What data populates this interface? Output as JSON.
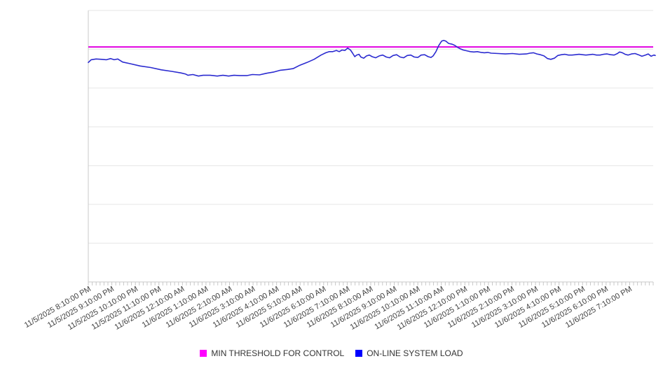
{
  "chart_data": {
    "type": "line",
    "title": "",
    "xlabel": "",
    "ylabel": "",
    "legend_position": "bottom",
    "grid": "horizontal",
    "y_axis": {
      "labels_visible": false,
      "units": "unlabeled (gridline units, 0 = bottom axis, 7 = top border)",
      "ylim": [
        0,
        7
      ]
    },
    "x_axis": {
      "tick_labels": [
        "11/5/2025 8:10:00 PM",
        "11/5/2025 9:10:00 PM",
        "11/5/2025 10:10:00 PM",
        "11/5/2025 11:10:00 PM",
        "11/6/2025 12:10:00 AM",
        "11/6/2025 1:10:00 AM",
        "11/6/2025 2:10:00 AM",
        "11/6/2025 3:10:00 AM",
        "11/6/2025 4:10:00 AM",
        "11/6/2025 5:10:00 AM",
        "11/6/2025 6:10:00 AM",
        "11/6/2025 7:10:00 AM",
        "11/6/2025 8:10:00 AM",
        "11/6/2025 9:10:00 AM",
        "11/6/2025 10:10:00 AM",
        "11/6/2025 11:10:00 AM",
        "11/6/2025 12:10:00 PM",
        "11/6/2025 1:10:00 PM",
        "11/6/2025 2:10:00 PM",
        "11/6/2025 3:10:00 PM",
        "11/6/2025 4:10:00 PM",
        "11/6/2025 5:10:00 PM",
        "11/6/2025 6:10:00 PM",
        "11/6/2025 7:10:00 PM"
      ],
      "minor_tick_interval_minutes": 10,
      "label_rotation_deg": -30
    },
    "series": [
      {
        "name": "MIN THRESHOLD FOR CONTROL",
        "kind": "threshold",
        "color": "#e100e1",
        "legend_color": "#ff00ff",
        "value": 6.06
      },
      {
        "name": "ON-LINE SYSTEM LOAD",
        "kind": "line",
        "color": "#2b2bd0",
        "legend_color": "#0000ff",
        "points": [
          [
            0,
            5.66
          ],
          [
            0.12,
            5.73
          ],
          [
            0.33,
            5.75
          ],
          [
            0.57,
            5.74
          ],
          [
            0.77,
            5.73
          ],
          [
            0.95,
            5.76
          ],
          [
            1.1,
            5.73
          ],
          [
            1.25,
            5.75
          ],
          [
            1.46,
            5.67
          ],
          [
            1.76,
            5.63
          ],
          [
            2.2,
            5.57
          ],
          [
            2.65,
            5.53
          ],
          [
            3.1,
            5.47
          ],
          [
            3.54,
            5.43
          ],
          [
            3.93,
            5.39
          ],
          [
            4.14,
            5.36
          ],
          [
            4.23,
            5.33
          ],
          [
            4.44,
            5.35
          ],
          [
            4.68,
            5.31
          ],
          [
            4.88,
            5.33
          ],
          [
            5.18,
            5.33
          ],
          [
            5.48,
            5.31
          ],
          [
            5.72,
            5.33
          ],
          [
            5.96,
            5.31
          ],
          [
            6.19,
            5.33
          ],
          [
            6.43,
            5.32
          ],
          [
            6.73,
            5.32
          ],
          [
            6.97,
            5.35
          ],
          [
            7.27,
            5.34
          ],
          [
            7.56,
            5.38
          ],
          [
            7.86,
            5.41
          ],
          [
            8.16,
            5.46
          ],
          [
            8.46,
            5.48
          ],
          [
            8.7,
            5.5
          ],
          [
            8.99,
            5.59
          ],
          [
            9.29,
            5.66
          ],
          [
            9.59,
            5.74
          ],
          [
            9.89,
            5.85
          ],
          [
            10.09,
            5.91
          ],
          [
            10.24,
            5.94
          ],
          [
            10.39,
            5.94
          ],
          [
            10.54,
            5.97
          ],
          [
            10.66,
            5.94
          ],
          [
            10.78,
            5.98
          ],
          [
            10.9,
            5.97
          ],
          [
            11.02,
            6.03
          ],
          [
            11.14,
            5.98
          ],
          [
            11.23,
            5.9
          ],
          [
            11.32,
            5.81
          ],
          [
            11.4,
            5.85
          ],
          [
            11.5,
            5.87
          ],
          [
            11.58,
            5.8
          ],
          [
            11.7,
            5.77
          ],
          [
            11.82,
            5.83
          ],
          [
            11.94,
            5.85
          ],
          [
            12.06,
            5.81
          ],
          [
            12.21,
            5.78
          ],
          [
            12.36,
            5.83
          ],
          [
            12.51,
            5.85
          ],
          [
            12.66,
            5.8
          ],
          [
            12.8,
            5.78
          ],
          [
            12.95,
            5.84
          ],
          [
            13.1,
            5.86
          ],
          [
            13.25,
            5.8
          ],
          [
            13.4,
            5.78
          ],
          [
            13.55,
            5.84
          ],
          [
            13.7,
            5.85
          ],
          [
            13.85,
            5.8
          ],
          [
            14,
            5.79
          ],
          [
            14.14,
            5.85
          ],
          [
            14.29,
            5.86
          ],
          [
            14.44,
            5.81
          ],
          [
            14.56,
            5.79
          ],
          [
            14.65,
            5.83
          ],
          [
            14.77,
            5.94
          ],
          [
            14.89,
            6.1
          ],
          [
            15.01,
            6.21
          ],
          [
            15.1,
            6.23
          ],
          [
            15.19,
            6.21
          ],
          [
            15.31,
            6.15
          ],
          [
            15.46,
            6.13
          ],
          [
            15.57,
            6.1
          ],
          [
            15.69,
            6.05
          ],
          [
            15.81,
            6.01
          ],
          [
            15.93,
            5.98
          ],
          [
            16.08,
            5.96
          ],
          [
            16.23,
            5.94
          ],
          [
            16.38,
            5.93
          ],
          [
            16.53,
            5.94
          ],
          [
            16.68,
            5.92
          ],
          [
            16.83,
            5.91
          ],
          [
            16.97,
            5.92
          ],
          [
            17.12,
            5.9
          ],
          [
            17.42,
            5.89
          ],
          [
            17.72,
            5.88
          ],
          [
            18.02,
            5.89
          ],
          [
            18.31,
            5.87
          ],
          [
            18.61,
            5.88
          ],
          [
            18.76,
            5.9
          ],
          [
            18.91,
            5.91
          ],
          [
            19.06,
            5.88
          ],
          [
            19.21,
            5.86
          ],
          [
            19.36,
            5.83
          ],
          [
            19.51,
            5.76
          ],
          [
            19.65,
            5.74
          ],
          [
            19.8,
            5.77
          ],
          [
            19.95,
            5.84
          ],
          [
            20.1,
            5.86
          ],
          [
            20.25,
            5.87
          ],
          [
            20.4,
            5.85
          ],
          [
            20.55,
            5.85
          ],
          [
            20.7,
            5.86
          ],
          [
            20.85,
            5.87
          ],
          [
            21,
            5.86
          ],
          [
            21.14,
            5.85
          ],
          [
            21.29,
            5.86
          ],
          [
            21.44,
            5.87
          ],
          [
            21.59,
            5.85
          ],
          [
            21.74,
            5.85
          ],
          [
            21.89,
            5.87
          ],
          [
            22.04,
            5.88
          ],
          [
            22.19,
            5.86
          ],
          [
            22.34,
            5.85
          ],
          [
            22.48,
            5.89
          ],
          [
            22.57,
            5.93
          ],
          [
            22.69,
            5.91
          ],
          [
            22.81,
            5.87
          ],
          [
            22.93,
            5.85
          ],
          [
            23.08,
            5.88
          ],
          [
            23.23,
            5.89
          ],
          [
            23.37,
            5.86
          ],
          [
            23.52,
            5.82
          ],
          [
            23.67,
            5.85
          ],
          [
            23.79,
            5.88
          ],
          [
            23.91,
            5.82
          ],
          [
            24.03,
            5.85
          ],
          [
            24.09,
            5.84
          ]
        ]
      }
    ]
  },
  "legend": {
    "items": [
      {
        "label": "MIN THRESHOLD FOR CONTROL"
      },
      {
        "label": "ON-LINE SYSTEM LOAD"
      }
    ]
  }
}
